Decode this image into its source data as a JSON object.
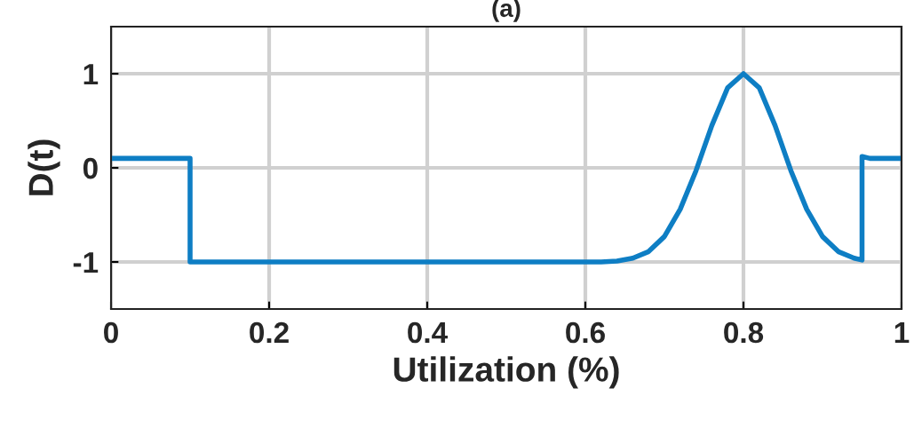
{
  "chart_data": {
    "type": "line",
    "title": "(a)",
    "xlabel": "Utilization (%)",
    "ylabel": "D(t)",
    "x": [
      0,
      0.1,
      0.1,
      0.6,
      0.62,
      0.64,
      0.66,
      0.68,
      0.7,
      0.72,
      0.74,
      0.76,
      0.78,
      0.8,
      0.82,
      0.84,
      0.86,
      0.88,
      0.9,
      0.92,
      0.94,
      0.95,
      0.95,
      0.96,
      1
    ],
    "series": [
      {
        "color": "#0e7ec4",
        "values": [
          0.1,
          0.1,
          -1,
          -1,
          -1,
          -0.99,
          -0.96,
          -0.89,
          -0.73,
          -0.44,
          -0.03,
          0.45,
          0.85,
          1,
          0.85,
          0.45,
          -0.03,
          -0.44,
          -0.73,
          -0.89,
          -0.96,
          -0.98,
          0.12,
          0.1,
          0.1
        ]
      }
    ],
    "xlim": [
      0,
      1
    ],
    "xticks": [
      0,
      0.2,
      0.4,
      0.6,
      0.8,
      1
    ],
    "ylim": [
      -1.5,
      1.5
    ],
    "yticks": [
      -1,
      0,
      1
    ],
    "grid": true,
    "line_style": "solid",
    "marker": "none"
  }
}
